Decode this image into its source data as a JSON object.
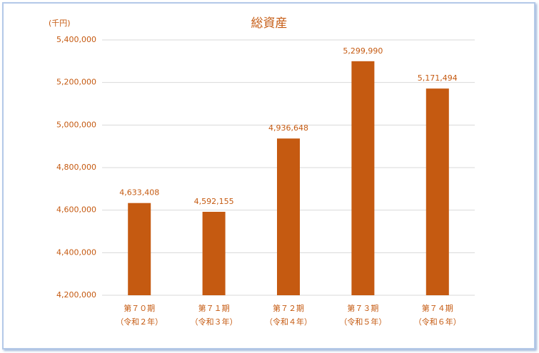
{
  "chart_data": {
    "type": "bar",
    "title": "総資産",
    "y_label": "(千円)",
    "categories": [
      [
        "第７０期",
        "（令和２年）"
      ],
      [
        "第７１期",
        "（令和３年）"
      ],
      [
        "第７２期",
        "（令和４年）"
      ],
      [
        "第７３期",
        "（令和５年）"
      ],
      [
        "第７４期",
        "（令和６年）"
      ]
    ],
    "values": [
      4633408,
      4592155,
      4936648,
      5299990,
      5171494
    ],
    "value_labels": [
      "4,633,408",
      "4,592,155",
      "4,936,648",
      "5,299,990",
      "5,171,494"
    ],
    "color": "#c55a11",
    "ylim": [
      4200000,
      5400000
    ],
    "yticks": [
      {
        "value": 4200000,
        "label": "4,200,000"
      },
      {
        "value": 4400000,
        "label": "4,400,000"
      },
      {
        "value": 4600000,
        "label": "4,600,000"
      },
      {
        "value": 4800000,
        "label": "4,800,000"
      },
      {
        "value": 5000000,
        "label": "5,000,000"
      },
      {
        "value": 5200000,
        "label": "5,200,000"
      },
      {
        "value": 5400000,
        "label": "5,400,000"
      }
    ],
    "grid": true
  }
}
